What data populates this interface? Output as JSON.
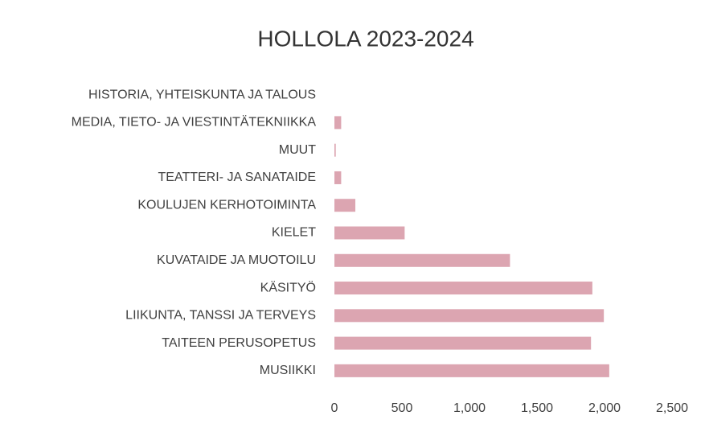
{
  "chart_data": {
    "type": "barh",
    "title": "HOLLOLA 2023-2024",
    "categories": [
      "HISTORIA, YHTEISKUNTA JA TALOUS",
      "MEDIA, TIETO- JA VIESTINTÄTEKNIIKKA",
      "MUUT",
      "TEATTERI- JA SANATAIDE",
      "KOULUJEN KERHOTOIMINTA",
      "KIELET",
      "KUVATAIDE JA MUOTOILU",
      "KÄSITYÖ",
      "LIIKUNTA, TANSSI JA TERVEYS",
      "TAITEEN PERUSOPETUS",
      "MUSIIKKI"
    ],
    "values": [
      0,
      50,
      10,
      50,
      155,
      520,
      1300,
      1910,
      1995,
      1900,
      2035
    ],
    "color": "#dca5b1",
    "xlim": [
      0,
      2500
    ],
    "xticks": [
      0,
      500,
      {
        "value": 1000,
        "label": "1,000"
      },
      {
        "value": 1500,
        "label": "1,500"
      },
      {
        "value": 2000,
        "label": "2,000"
      },
      {
        "value": 2500,
        "label": "2,500"
      }
    ],
    "grid": false
  }
}
